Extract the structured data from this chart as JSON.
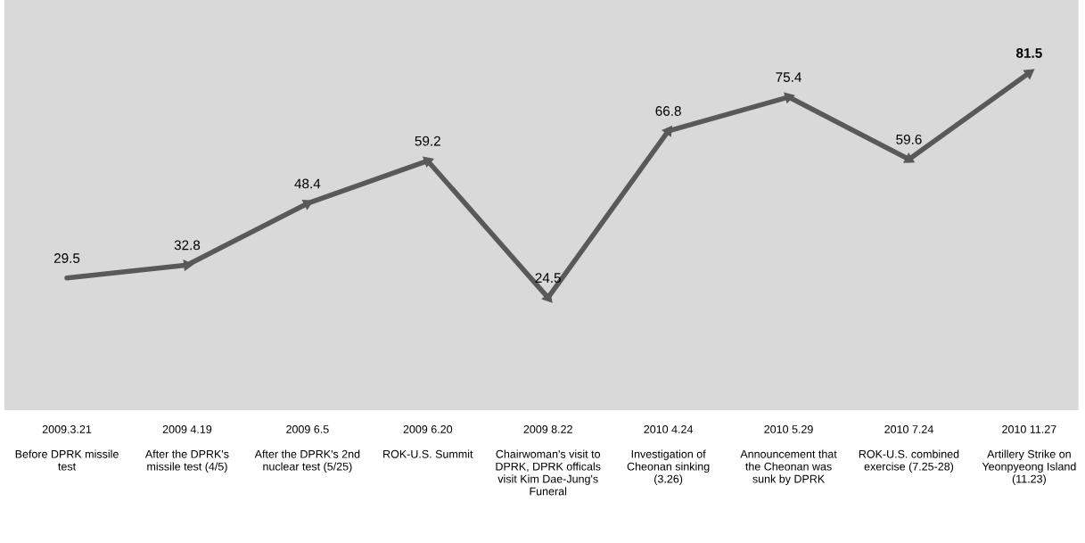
{
  "chart_data": {
    "type": "line",
    "categories": [
      "2009.3.21\n\nBefore DPRK missile\ntest",
      "2009 4.19\n\nAfter the DPRK's\nmissile test (4/5)",
      "2009 6.5\n\nAfter the DPRK's 2nd\nnuclear test (5/25)",
      "2009 6.20\n\nROK-U.S. Summit",
      "2009 8.22\n\nChairwoman's visit to\nDPRK, DPRK officals\nvisit Kim Dae-Jung's\nFuneral",
      "2010 4.24\n\nInvestigation of\nCheonan sinking\n(3.26)",
      "2010 5.29\n\nAnnouncement that\nthe Cheonan was\nsunk by DPRK",
      "2010 7.24\n\nROK-U.S. combined\nexercise (7.25-28)",
      "2010 11.27\n\nArtillery Strike on\nYeonpyeong Island\n(11.23)"
    ],
    "series": [
      {
        "color": "#595959",
        "values": [
          29.5,
          32.8,
          48.4,
          59.2,
          24.5,
          66.8,
          75.4,
          59.6,
          81.5
        ]
      }
    ],
    "ylim": [
      -4,
      100
    ],
    "data_labels": true,
    "grid": false,
    "legend": false,
    "line_style": "solid",
    "marker": "triangle"
  }
}
